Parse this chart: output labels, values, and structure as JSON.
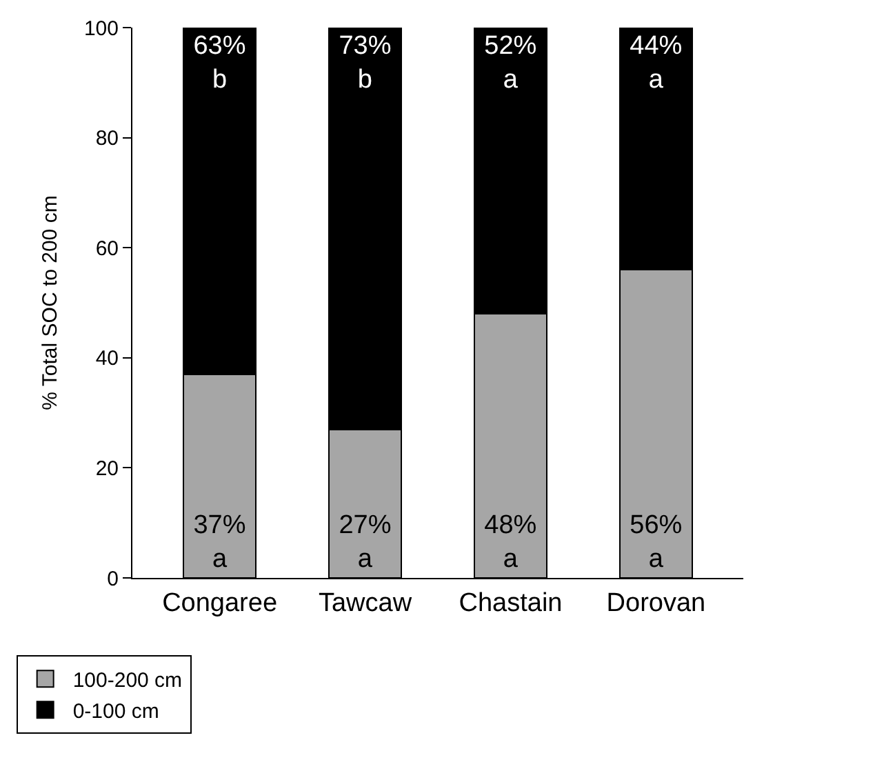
{
  "chart_data": {
    "type": "bar",
    "stacked": true,
    "ylabel": "% Total SOC to 200 cm",
    "categories": [
      "Congaree",
      "Tawcaw",
      "Chastain",
      "Dorovan"
    ],
    "series": [
      {
        "name": "100-200 cm",
        "color": "#a6a6a6",
        "values": [
          37,
          27,
          48,
          56
        ],
        "value_labels": [
          "37%\na",
          "27%\na",
          "48%\na",
          "56%\na"
        ]
      },
      {
        "name": "0-100 cm",
        "color": "#000000",
        "values": [
          63,
          73,
          52,
          44
        ],
        "value_labels": [
          "63%\nb",
          "73%\nb",
          "52%\na",
          "44%\na"
        ]
      }
    ],
    "ylim": [
      0,
      100
    ],
    "yticks": [
      0,
      20,
      40,
      60,
      80,
      100
    ],
    "legend": "bottom left"
  }
}
